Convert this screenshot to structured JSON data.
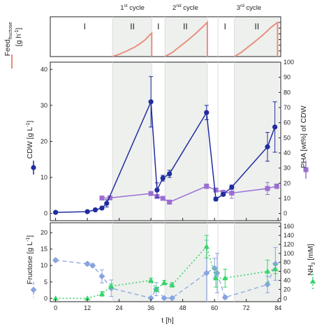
{
  "chart_data": [
    {
      "type": "line",
      "panel": "feed",
      "ylabel_main": "Feed",
      "ylabel_sub": "fructose",
      "ylabel_unit": "[g h⁻¹]",
      "y_unit_open": "[g h",
      "y_unit_exp": "-1",
      "y_unit_close": "]",
      "ylim": [
        0,
        7
      ],
      "yticks": [
        0,
        1,
        2,
        3,
        4,
        5,
        6,
        7
      ],
      "xlim": [
        -2,
        85
      ],
      "cycles": [
        {
          "label_num": "1",
          "label_sup": "st",
          "label_rest": " cycle",
          "center": 29
        },
        {
          "label_num": "2",
          "label_sup": "nd",
          "label_rest": " cycle",
          "center": 49
        },
        {
          "label_num": "3",
          "label_sup": "rd",
          "label_rest": " cycle",
          "center": 73
        }
      ],
      "phases": [
        {
          "label": "I",
          "center": 11
        },
        {
          "label": "II",
          "center": 29
        },
        {
          "label": "I",
          "center": 38.8
        },
        {
          "label": "II",
          "center": 49
        },
        {
          "label": "I",
          "center": 64
        },
        {
          "label": "II",
          "center": 76
        }
      ],
      "shaded_phase_II": [
        [
          21.5,
          36.3
        ],
        [
          41.3,
          57.3
        ],
        [
          67.5,
          84.5
        ]
      ],
      "phase_dividers": [
        21.5,
        36.3,
        41.3,
        57.3,
        61.3,
        67.5
      ],
      "series": [
        {
          "name": "Feed fructose",
          "color": "#e8907e",
          "segments": [
            {
              "x": [
                21.5,
                24,
                27,
                30,
                32,
                34,
                35.5,
                36.3,
                36.3
              ],
              "y": [
                0,
                0.4,
                1.0,
                1.7,
                2.3,
                3.0,
                3.8,
                4.1,
                0
              ]
            },
            {
              "x": [
                41.3,
                44,
                47,
                50,
                53,
                55.5,
                57.3,
                57.3
              ],
              "y": [
                0,
                0.7,
                1.8,
                2.9,
                4.1,
                5.2,
                6.0,
                0
              ]
            },
            {
              "x": [
                67.5,
                70,
                73,
                76,
                79,
                81.5,
                83.8,
                83.8
              ],
              "y": [
                0,
                0.7,
                1.8,
                2.9,
                4.1,
                5.2,
                6.0,
                0
              ]
            }
          ]
        }
      ]
    },
    {
      "type": "line",
      "panel": "cdw_pha",
      "ylabel_left": "CDW  [g L⁻¹]",
      "yl_open": "CDW  [g L",
      "yl_exp": "-1",
      "yl_close": "]",
      "ylabel_right": "PHA [wt%] of CDW",
      "ylim_left": [
        -2,
        42
      ],
      "ylim_right": [
        -4.76,
        100
      ],
      "yticks_left": [
        0,
        10,
        20,
        30,
        40
      ],
      "yticks_right": [
        0,
        10,
        20,
        30,
        40,
        50,
        60,
        70,
        80,
        90,
        100
      ],
      "xlim": [
        -2,
        85
      ],
      "series": [
        {
          "name": "CDW",
          "color": "#1f2d9e",
          "marker": "circle",
          "x": [
            0,
            12,
            15,
            17.5,
            19.3,
            36,
            38.3,
            40.5,
            43,
            57,
            60.5,
            63.3,
            66.5,
            80,
            82.8
          ],
          "y": [
            0.3,
            0.5,
            1.0,
            1.5,
            2.8,
            31.0,
            6.5,
            9.8,
            11.0,
            28.0,
            4.0,
            5.3,
            7.3,
            18.5,
            24.0
          ],
          "err": [
            0.3,
            0.3,
            0.4,
            0.4,
            1.0,
            7.0,
            2.0,
            0.8,
            1.0,
            2.0,
            0.5,
            0.4,
            0.6,
            4.0,
            7.0
          ]
        },
        {
          "name": "PHA",
          "color": "#9b6fd1",
          "marker": "square",
          "x": [
            17.5,
            20.5,
            36,
            38.3,
            40.5,
            43,
            57,
            60.5,
            63.3,
            66.5,
            80,
            83.5
          ],
          "y": [
            10.2,
            10.3,
            13.2,
            11.2,
            10.0,
            7.5,
            18.0,
            15.5,
            14.0,
            13.5,
            16.5,
            18.0
          ],
          "err": [
            0,
            0,
            0,
            0,
            0,
            0,
            1.5,
            0,
            0,
            3.5,
            4.0,
            1.5
          ]
        }
      ]
    },
    {
      "type": "line",
      "panel": "fructose_nh3",
      "ylabel_left": "Fructose [g L⁻¹]",
      "yl_open": "Fructose [g L",
      "yl_exp": "-1",
      "yl_close": "]",
      "ylabel_right": "NH₃ [mM]",
      "yr_open": "NH",
      "yr_sub": "3",
      "yr_close": " [mM]",
      "xlabel": "t [h]",
      "ylim_left": [
        -1,
        23
      ],
      "ylim_right": [
        -7.3,
        168
      ],
      "yticks_left": [
        0,
        5,
        10,
        15,
        20
      ],
      "yticks_right": [
        0,
        20,
        40,
        60,
        80,
        100,
        120,
        140,
        160
      ],
      "xticks": [
        0,
        12,
        24,
        36,
        48,
        60,
        72,
        84
      ],
      "xlim": [
        -2,
        85
      ],
      "series": [
        {
          "name": "Fructose",
          "color": "#88a4e0",
          "marker": "diamond",
          "x": [
            0,
            12,
            14,
            17.5,
            21,
            36,
            38,
            41,
            44,
            57,
            60,
            61,
            64,
            80,
            83
          ],
          "y": [
            11.6,
            10.5,
            10.0,
            6.7,
            3.1,
            0.1,
            2.8,
            0.1,
            0.1,
            7.7,
            9.2,
            7.7,
            0.3,
            4.2,
            10.5
          ],
          "err": [
            0.5,
            0.5,
            0.5,
            2.0,
            2.5,
            0.3,
            2.0,
            0.3,
            0.3,
            10.0,
            3.0,
            6.0,
            0.5,
            2.5,
            5.0
          ]
        },
        {
          "name": "NH3",
          "color": "#36d46a",
          "marker": "triangle",
          "x": [
            0,
            12,
            17.5,
            21,
            36,
            38,
            41,
            44,
            57,
            60.5,
            64,
            80,
            83
          ],
          "y": [
            0,
            0,
            10,
            27,
            40,
            20,
            35,
            30,
            115,
            45,
            45,
            60,
            65
          ],
          "err": [
            0,
            0,
            5,
            5,
            5,
            5,
            5,
            5,
            25,
            20,
            20,
            25,
            10
          ]
        }
      ]
    }
  ]
}
